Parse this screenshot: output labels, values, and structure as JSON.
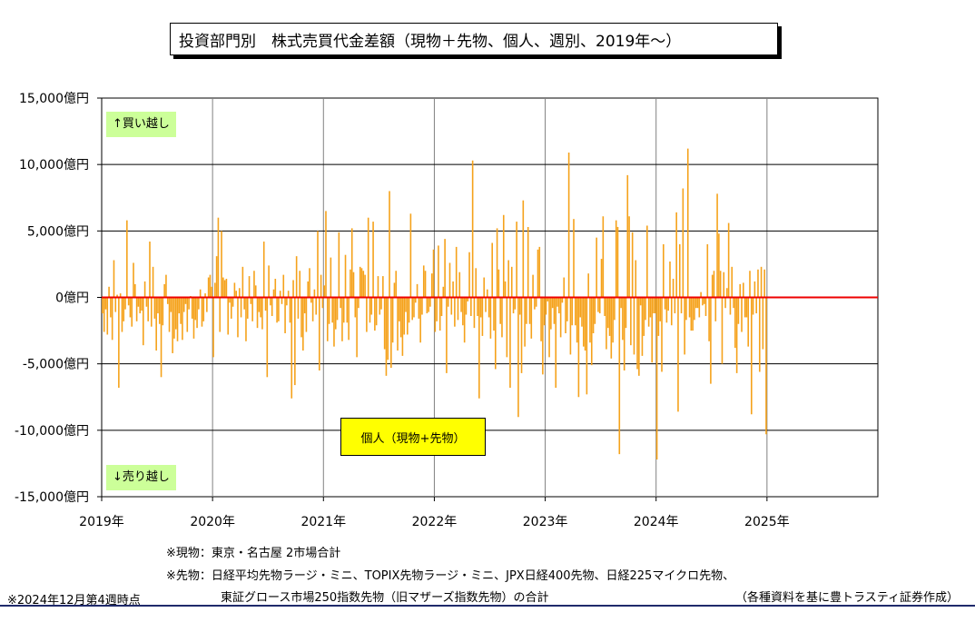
{
  "title": "投資部門別　株式売買代金差額（現物＋先物、個人、週別、2019年～）",
  "tags": {
    "buy": "↑買い越し",
    "sell": "↓売り越し"
  },
  "legend": "個人（現物+先物）",
  "notes": {
    "genbutsu": "※現物：東京・名古屋 2市場合計",
    "sakimono1": "※先物：日経平均先物ラージ・ミニ、TOPIX先物ラージ・ミニ、JPX日経400先物、日経225マイクロ先物、",
    "sakimono2": "東証グロース市場250指数先物（旧マザーズ指数先物）の合計",
    "asof": "※2024年12月第4週時点",
    "source": "（各種資料を基に豊トラスティ証券作成）"
  },
  "colors": {
    "bar": "#f5a21b",
    "zero_line": "#ee0000",
    "grid": "#000000",
    "tag_bg": "#ccff99",
    "legend_bg": "#ffff00"
  },
  "chart_data": {
    "type": "bar",
    "series": [
      {
        "name": "個人（現物+先物）"
      }
    ],
    "ylim": [
      -15000,
      15000
    ],
    "yticks": [
      {
        "value": 15000,
        "label": "15,000億円"
      },
      {
        "value": 10000,
        "label": "10,000億円"
      },
      {
        "value": 5000,
        "label": "5,000億円"
      },
      {
        "value": 0,
        "label": "0億円"
      },
      {
        "value": -5000,
        "label": "-5,000億円"
      },
      {
        "value": -10000,
        "label": "-10,000億円"
      },
      {
        "value": -15000,
        "label": "-15,000億円"
      }
    ],
    "xticks": [
      "2019年",
      "2020年",
      "2021年",
      "2022年",
      "2023年",
      "2024年",
      "2025年"
    ],
    "xlim_years": [
      2019,
      2026
    ],
    "bar_values_oku_yen": [
      -1200,
      -2600,
      -900,
      -2800,
      800,
      -1500,
      -3200,
      2800,
      -1100,
      200,
      -6800,
      300,
      -2600,
      -1800,
      -900,
      5800,
      -600,
      -1500,
      -2200,
      2600,
      1000,
      -1800,
      -700,
      -1200,
      -1000,
      -3600,
      1200,
      -700,
      -1800,
      4200,
      -2200,
      2300,
      -1600,
      -4000,
      -1200,
      -2000,
      -6000,
      -2100,
      1000,
      1700,
      -500,
      -2600,
      -1100,
      -4200,
      -3100,
      -2400,
      -3300,
      -1200,
      -2000,
      -3200,
      -1100,
      -500,
      -2600,
      -900,
      100,
      -1600,
      -3100,
      -1700,
      -2300,
      -900,
      600,
      -2200,
      -1800,
      300,
      -1100,
      1500,
      1700,
      800,
      -4500,
      1100,
      3100,
      6000,
      -2600,
      5000,
      1500,
      1300,
      1400,
      -2800,
      -400,
      -1600,
      -700,
      1100,
      500,
      -3000,
      700,
      -1500,
      2300,
      -900,
      -3300,
      -1600,
      1600,
      -500,
      -1800,
      2000,
      900,
      -2300,
      -1100,
      -1500,
      -2400,
      4200,
      -1000,
      -6000,
      2400,
      -600,
      -1400,
      600,
      1400,
      -1900,
      -1800,
      500,
      -500,
      1700,
      -2700,
      -600,
      500,
      -1900,
      -7600,
      1300,
      -6600,
      3100,
      -1600,
      2000,
      -3000,
      -4000,
      -1200,
      -2600,
      1200,
      2200,
      -400,
      -1800,
      600,
      -1300,
      5000,
      -5500,
      1700,
      -800,
      900,
      6500,
      -3300,
      -2000,
      3000,
      -1900,
      -3700,
      -2400,
      -1700,
      4900,
      -800,
      -3300,
      -1900,
      3200,
      -1900,
      -3200,
      2100,
      5200,
      1900,
      -1500,
      -4500,
      -800,
      2300,
      2200,
      2000,
      1700,
      -2600,
      6000,
      -1900,
      -1300,
      5700,
      -2500,
      -2100,
      1600,
      -1300,
      -900,
      1600,
      -3900,
      -5900,
      -4700,
      8000,
      -5300,
      -3400,
      1100,
      2000,
      -4000,
      -1800,
      -3000,
      -4400,
      -2800,
      -1100,
      -2800,
      -1900,
      6300,
      -1700,
      -1500,
      -400,
      1000,
      -1600,
      -3400,
      -1300,
      2400,
      2000,
      -1200,
      -1100,
      -700,
      1800,
      3600,
      -2600,
      -1800,
      3900,
      -2500,
      -1400,
      800,
      4400,
      -5700,
      -700,
      2600,
      -1300,
      1200,
      -2200,
      3800,
      -1700,
      1900,
      -1100,
      -2100,
      -3400,
      -1300,
      -300,
      3400,
      -1400,
      10300,
      -2300,
      2200,
      -1400,
      -7600,
      -1500,
      -2900,
      1500,
      -1100,
      600,
      -1500,
      -3100,
      4100,
      -2500,
      -5400,
      5200,
      2100,
      -2000,
      -3000,
      6200,
      1200,
      -4500,
      2800,
      -6800,
      2300,
      -1200,
      -900,
      5700,
      -9000,
      -1300,
      -5700,
      7300,
      -3700,
      -2000,
      5300,
      -2000,
      -3100,
      1700,
      -900,
      -700,
      3600,
      3800,
      -3300,
      -5800,
      -2100,
      -1300,
      -300,
      -4500,
      -2400,
      -800,
      -2000,
      -6800,
      -700,
      -1200,
      -3000,
      -400,
      1500,
      -2700,
      -1800,
      10900,
      -4300,
      -2100,
      5900,
      -2100,
      -3400,
      -7500,
      -1500,
      -2200,
      -3700,
      -4000,
      -7300,
      1800,
      -3400,
      -5100,
      -2700,
      -2000,
      4500,
      -1100,
      -1200,
      2900,
      6100,
      -1400,
      -3900,
      -2300,
      -2900,
      -4600,
      -3400,
      -1700,
      5800,
      5300,
      -11800,
      -800,
      -3200,
      -5500,
      -2300,
      9200,
      6100,
      -3600,
      4900,
      -4300,
      2800,
      -5400,
      -5900,
      -600,
      -4400,
      -2900,
      -1700,
      5400,
      -2200,
      -1500,
      -4900,
      -1200,
      -1200,
      -12200,
      -2900,
      -1800,
      -5600,
      4000,
      -900,
      -1900,
      -1000,
      2700,
      -2100,
      1400,
      -1200,
      6400,
      -8600,
      4000,
      -1200,
      8200,
      -4300,
      -1700,
      11200,
      -1500,
      -2500,
      -2500,
      -1700,
      -800,
      -800,
      -1500,
      400,
      -600,
      -500,
      -1400,
      4000,
      -3300,
      -6500,
      1700,
      2000,
      -1800,
      7800,
      4800,
      2000,
      -5000,
      1900,
      -800,
      700,
      5600,
      -1300,
      2300,
      -800,
      -3800,
      -5700,
      -2000,
      1000,
      -2600,
      1100,
      -1500,
      -1500,
      -3700,
      2000,
      -8800,
      -1300,
      1200,
      -1200,
      2100,
      -5600,
      2300,
      -3900,
      2100,
      -10300
    ]
  }
}
